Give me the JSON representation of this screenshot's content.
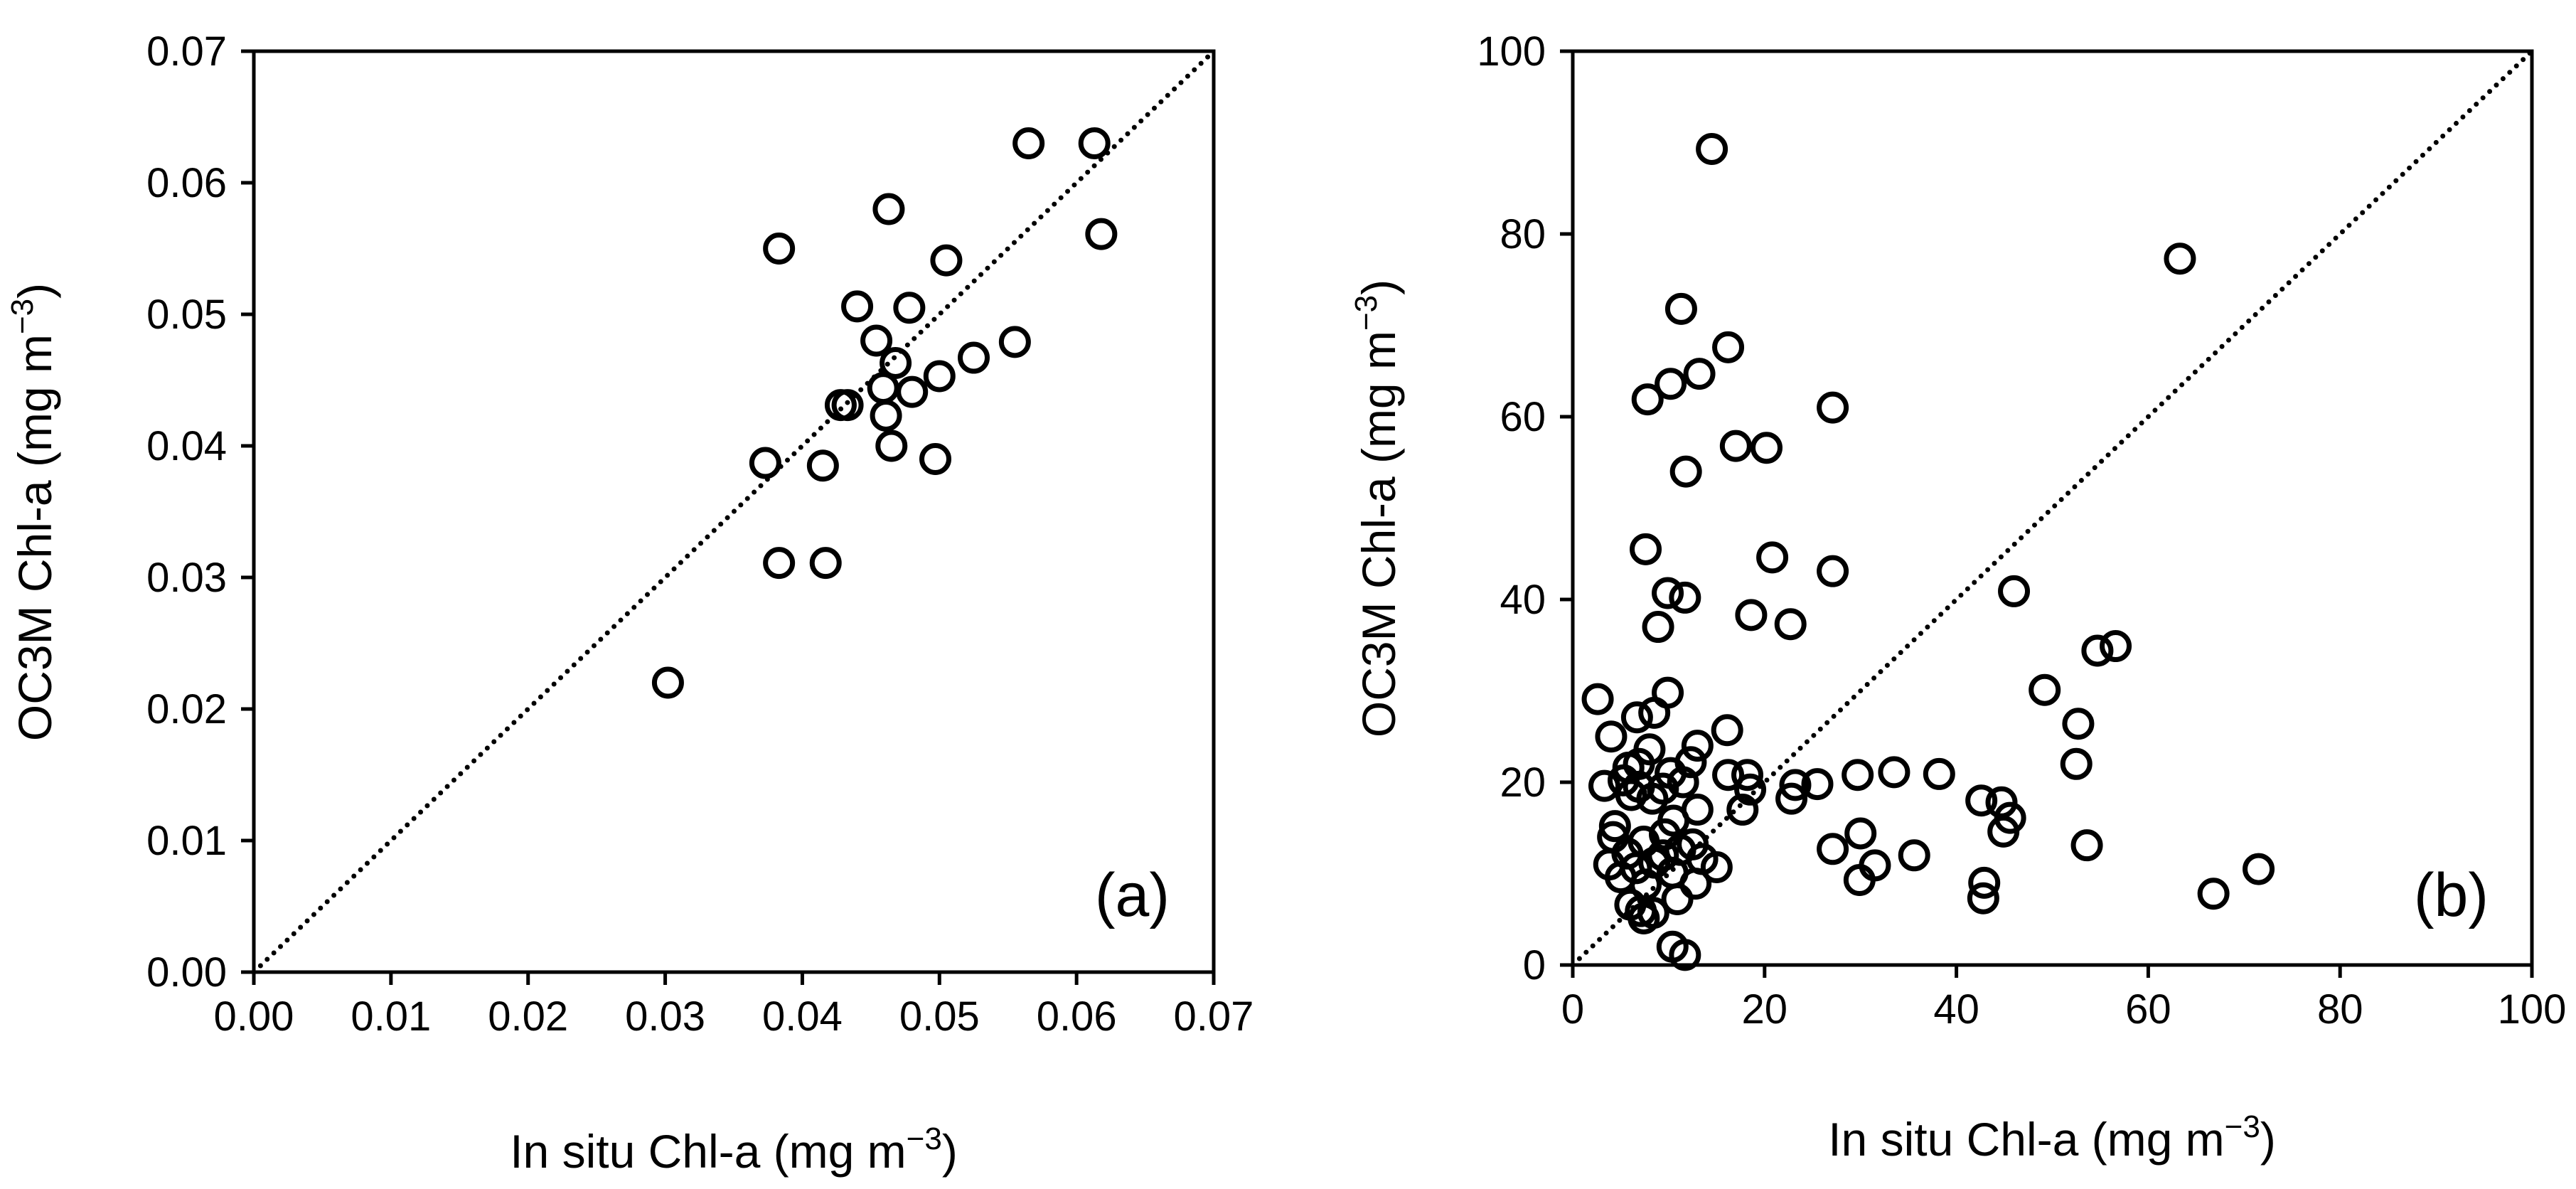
{
  "colors": {
    "ink": "#000000",
    "background": "#ffffff"
  },
  "chart_data": [
    {
      "type": "scatter",
      "panel_label": "(a)",
      "title": "",
      "xlabel": "In situ Chl-a (mg m",
      "ylabel": "OC3M Chl-a (mg m",
      "unit_exponent": "−3",
      "unit_close": ")",
      "xlim": [
        0,
        0.07
      ],
      "ylim": [
        0,
        0.07
      ],
      "xticks": [
        "0.00",
        "0.01",
        "0.02",
        "0.03",
        "0.04",
        "0.05",
        "0.06",
        "0.07"
      ],
      "yticks": [
        "0.00",
        "0.01",
        "0.02",
        "0.03",
        "0.04",
        "0.05",
        "0.06",
        "0.07"
      ],
      "grid": false,
      "reference_line": "1:1 dotted",
      "marker": "open circle",
      "points": [
        [
          0.0302,
          0.022
        ],
        [
          0.0373,
          0.0387
        ],
        [
          0.0383,
          0.055
        ],
        [
          0.0383,
          0.0311
        ],
        [
          0.0415,
          0.0385
        ],
        [
          0.0417,
          0.0311
        ],
        [
          0.0428,
          0.0431
        ],
        [
          0.0433,
          0.0431
        ],
        [
          0.044,
          0.0506
        ],
        [
          0.0454,
          0.048
        ],
        [
          0.0459,
          0.0444
        ],
        [
          0.0461,
          0.0423
        ],
        [
          0.0463,
          0.058
        ],
        [
          0.0465,
          0.04
        ],
        [
          0.0468,
          0.0463
        ],
        [
          0.0478,
          0.0505
        ],
        [
          0.048,
          0.0441
        ],
        [
          0.0497,
          0.039
        ],
        [
          0.05,
          0.0453
        ],
        [
          0.0505,
          0.0541
        ],
        [
          0.0525,
          0.0467
        ],
        [
          0.0555,
          0.0479
        ],
        [
          0.0565,
          0.063
        ],
        [
          0.0613,
          0.063
        ],
        [
          0.0618,
          0.0561
        ]
      ]
    },
    {
      "type": "scatter",
      "panel_label": "(b)",
      "title": "",
      "xlabel": "In situ Chl-a (mg m",
      "ylabel": "OC3M Chl-a (mg m",
      "unit_exponent": "−3",
      "unit_close": ")",
      "xlim": [
        0,
        100
      ],
      "ylim": [
        0,
        100
      ],
      "xticks": [
        "0",
        "20",
        "40",
        "60",
        "80",
        "100"
      ],
      "yticks": [
        "0",
        "20",
        "40",
        "60",
        "80",
        "100"
      ],
      "grid": false,
      "reference_line": "1:1 dotted",
      "marker": "open circle",
      "points": [
        [
          14.5,
          89.3
        ],
        [
          63.3,
          77.3
        ],
        [
          11.3,
          71.8
        ],
        [
          16.2,
          67.6
        ],
        [
          13.2,
          64.7
        ],
        [
          10.2,
          63.6
        ],
        [
          7.8,
          61.9
        ],
        [
          27.1,
          61.0
        ],
        [
          17.0,
          56.8
        ],
        [
          20.2,
          56.6
        ],
        [
          11.8,
          54.0
        ],
        [
          7.6,
          45.5
        ],
        [
          20.8,
          44.6
        ],
        [
          27.1,
          43.1
        ],
        [
          46.0,
          40.9
        ],
        [
          9.9,
          40.7
        ],
        [
          11.7,
          40.2
        ],
        [
          18.6,
          38.3
        ],
        [
          22.7,
          37.3
        ],
        [
          8.9,
          37.0
        ],
        [
          56.6,
          34.9
        ],
        [
          54.7,
          34.4
        ],
        [
          49.2,
          30.1
        ],
        [
          9.9,
          29.8
        ],
        [
          2.6,
          29.1
        ],
        [
          8.5,
          27.6
        ],
        [
          6.7,
          27.1
        ],
        [
          52.7,
          26.4
        ],
        [
          4.0,
          25.0
        ],
        [
          16.1,
          25.7
        ],
        [
          13.0,
          24.0
        ],
        [
          8.0,
          23.6
        ],
        [
          12.3,
          22.2
        ],
        [
          6.9,
          22.0
        ],
        [
          52.5,
          22.0
        ],
        [
          5.8,
          21.6
        ],
        [
          10.2,
          21.0
        ],
        [
          16.2,
          20.8
        ],
        [
          18.2,
          20.8
        ],
        [
          29.7,
          20.8
        ],
        [
          33.5,
          21.1
        ],
        [
          38.2,
          20.9
        ],
        [
          5.3,
          20.2
        ],
        [
          11.5,
          20.0
        ],
        [
          23.2,
          19.7
        ],
        [
          25.5,
          19.8
        ],
        [
          3.3,
          19.6
        ],
        [
          6.9,
          19.5
        ],
        [
          9.4,
          19.3
        ],
        [
          18.5,
          19.2
        ],
        [
          6.1,
          18.6
        ],
        [
          8.3,
          18.2
        ],
        [
          22.8,
          18.2
        ],
        [
          42.6,
          18.0
        ],
        [
          44.7,
          17.8
        ],
        [
          17.7,
          17.0
        ],
        [
          13.0,
          17.0
        ],
        [
          4.4,
          15.2
        ],
        [
          45.6,
          16.1
        ],
        [
          10.5,
          15.8
        ],
        [
          4.2,
          14.0
        ],
        [
          30.0,
          14.4
        ],
        [
          44.9,
          14.6
        ],
        [
          9.6,
          14.3
        ],
        [
          7.4,
          13.5
        ],
        [
          12.5,
          13.2
        ],
        [
          53.6,
          13.1
        ],
        [
          27.1,
          12.7
        ],
        [
          11.2,
          12.6
        ],
        [
          5.7,
          12.2
        ],
        [
          9.4,
          12.0
        ],
        [
          35.6,
          12.0
        ],
        [
          13.5,
          11.6
        ],
        [
          3.8,
          11.0
        ],
        [
          8.5,
          11.2
        ],
        [
          15.0,
          10.7
        ],
        [
          6.6,
          10.6
        ],
        [
          31.5,
          10.9
        ],
        [
          71.5,
          10.5
        ],
        [
          10.4,
          10.1
        ],
        [
          5.0,
          9.6
        ],
        [
          29.9,
          9.3
        ],
        [
          42.9,
          9.0
        ],
        [
          7.6,
          8.8
        ],
        [
          12.8,
          8.9
        ],
        [
          66.8,
          7.8
        ],
        [
          42.8,
          7.3
        ],
        [
          10.9,
          7.2
        ],
        [
          6.0,
          6.6
        ],
        [
          7.1,
          5.9
        ],
        [
          8.4,
          5.7
        ],
        [
          7.4,
          5.1
        ],
        [
          10.4,
          2.0
        ],
        [
          11.7,
          1.1
        ]
      ]
    }
  ]
}
